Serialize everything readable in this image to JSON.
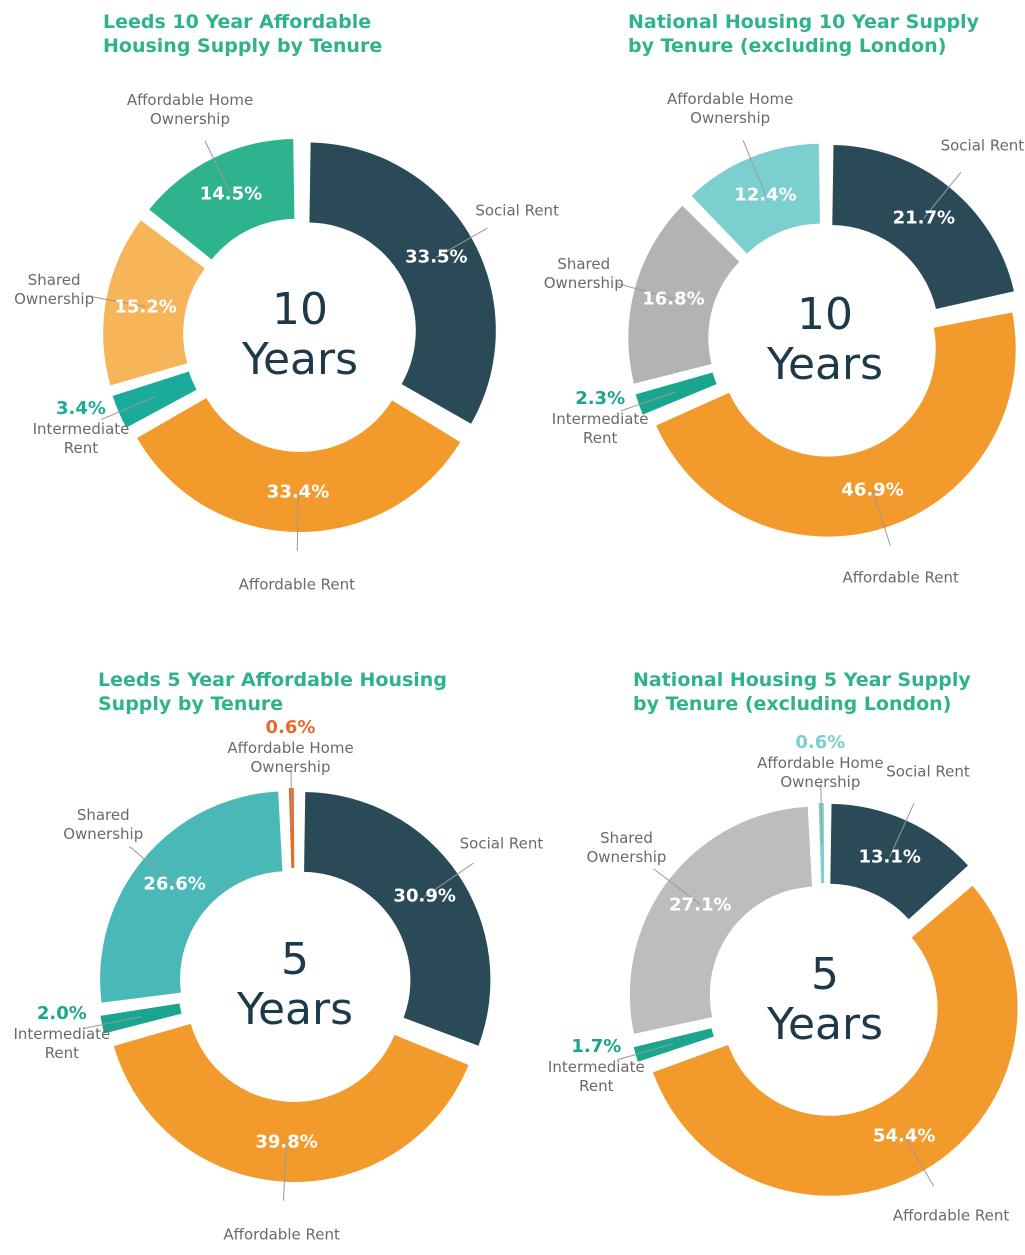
{
  "chart_data": [
    {
      "type": "donut",
      "title": "Leeds 10 Year Affordable Housing Supply by Tenure",
      "center_label": "10 Years",
      "categories": [
        "Social Rent",
        "Affordable Rent",
        "Intermediate Rent",
        "Shared Ownership",
        "Affordable Home Ownership"
      ],
      "values": [
        33.5,
        33.4,
        3.4,
        15.2,
        14.5
      ],
      "value_labels": [
        "33.5%",
        "33.4%",
        "3.4%",
        "15.2%",
        "14.5%"
      ],
      "colors": [
        "#2a4a58",
        "#f39a2c",
        "#1aab9b",
        "#f7b55a",
        "#2eb38f"
      ]
    },
    {
      "type": "donut",
      "title": "National Housing 10 Year Supply by Tenure (excluding London)",
      "center_label": "10 Years",
      "categories": [
        "Social Rent",
        "Affordable Rent",
        "Intermediate Rent",
        "Shared Ownership",
        "Affordable Home Ownership"
      ],
      "values": [
        21.7,
        46.9,
        2.3,
        16.8,
        12.4
      ],
      "value_labels": [
        "21.7%",
        "46.9%",
        "2.3%",
        "16.8%",
        "12.4%"
      ],
      "colors": [
        "#2a4a58",
        "#f39a2c",
        "#1aa58f",
        "#b3b3b3",
        "#7ccfcf"
      ]
    },
    {
      "type": "donut",
      "title": "Leeds 5 Year Affordable Housing Supply by Tenure",
      "center_label": "5 Years",
      "categories": [
        "Social Rent",
        "Affordable Rent",
        "Intermediate Rent",
        "Shared Ownership",
        "Affordable Home Ownership"
      ],
      "values": [
        30.9,
        39.8,
        2.0,
        26.6,
        0.6
      ],
      "value_labels": [
        "30.9%",
        "39.8%",
        "2.0%",
        "26.6%",
        "0.6%"
      ],
      "colors": [
        "#2a4a58",
        "#f39a2c",
        "#1aa58f",
        "#4bb8b8",
        "#e8692a"
      ]
    },
    {
      "type": "donut",
      "title": "National Housing 5 Year Supply by Tenure (excluding London)",
      "center_label": "5 Years",
      "categories": [
        "Social Rent",
        "Affordable Rent",
        "Intermediate Rent",
        "Shared Ownership",
        "Affordable Home Ownership"
      ],
      "values": [
        13.1,
        54.4,
        1.7,
        27.1,
        0.6
      ],
      "value_labels": [
        "13.1%",
        "54.4%",
        "1.7%",
        "27.1%",
        "0.6%"
      ],
      "colors": [
        "#2a4a58",
        "#f39a2c",
        "#1aa58f",
        "#bdbdbd",
        "#7ccfcf"
      ]
    }
  ]
}
